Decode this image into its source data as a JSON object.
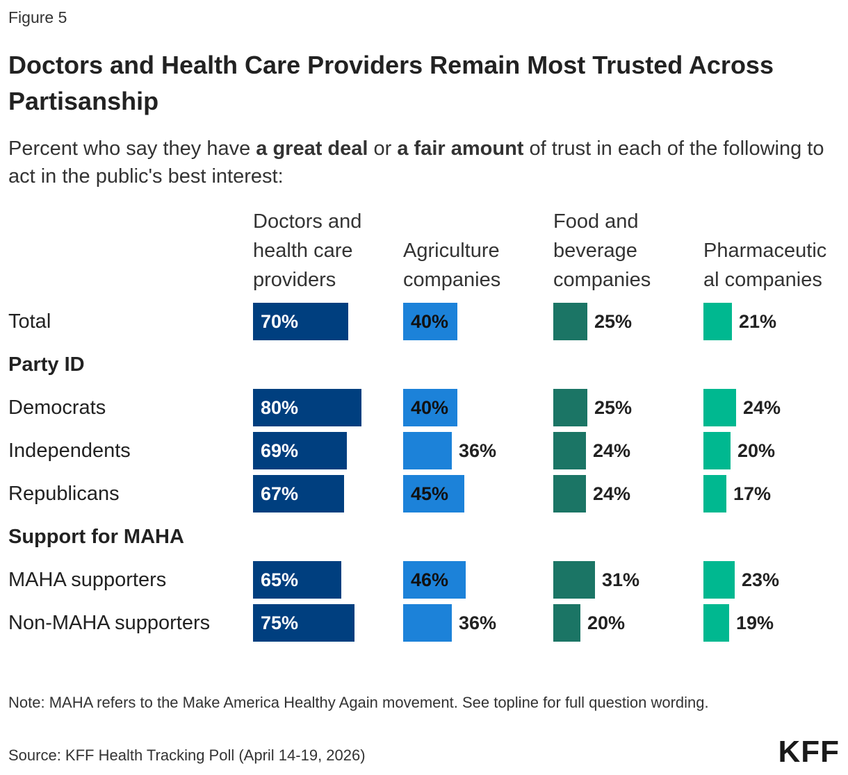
{
  "figure_label": "Figure 5",
  "title": "Doctors and Health Care Providers Remain Most Trusted Across Partisanship",
  "subtitle": {
    "part1": "Percent who say they have ",
    "bold1": "a great deal",
    "part2": " or ",
    "bold2": "a fair amount",
    "part3": " of trust in each of the following to act in the public's best interest:"
  },
  "chart_data": {
    "type": "bar",
    "orientation": "horizontal small multiples",
    "value_format": "percent",
    "xlim": [
      0,
      100
    ],
    "panels": [
      {
        "header_lines": [
          "Doctors and",
          "health care",
          "providers"
        ],
        "color": "#003f7f"
      },
      {
        "header_lines": [
          "Agriculture",
          "companies"
        ],
        "color": "#1c82d9"
      },
      {
        "header_lines": [
          "Food and",
          "beverage",
          "companies"
        ],
        "color": "#1b7565"
      },
      {
        "header_lines": [
          "Pharmaceutic",
          "al companies"
        ],
        "color": "#00b890"
      }
    ],
    "rows": [
      {
        "label": "Total",
        "values": [
          70,
          40,
          25,
          21
        ]
      },
      {
        "label": "Party ID",
        "group": true
      },
      {
        "label": "Democrats",
        "values": [
          80,
          40,
          25,
          24
        ]
      },
      {
        "label": "Independents",
        "values": [
          69,
          36,
          24,
          20
        ]
      },
      {
        "label": "Republicans",
        "values": [
          67,
          45,
          24,
          17
        ]
      },
      {
        "label": "Support for MAHA",
        "group": true
      },
      {
        "label": "MAHA supporters",
        "values": [
          65,
          46,
          31,
          23
        ]
      },
      {
        "label": "Non-MAHA supporters",
        "values": [
          75,
          36,
          20,
          19
        ]
      }
    ]
  },
  "note": "Note: MAHA refers to the Make America Healthy Again movement. See topline for full question wording.",
  "source": "Source: KFF Health Tracking Poll (April 14-19, 2026)",
  "logo_text": "KFF"
}
